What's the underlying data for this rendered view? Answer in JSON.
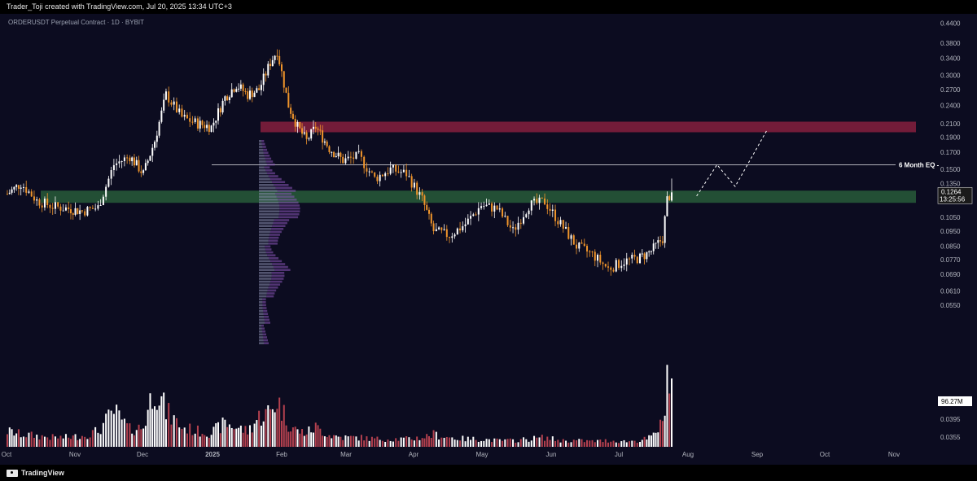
{
  "header": {
    "attribution": "Trader_Toji created with TradingView.com, Jul 20, 2025 13:34 UTC+3"
  },
  "footer": {
    "brand": "TradingView"
  },
  "colors": {
    "background": "#0c0c20",
    "up": "#ffffff",
    "down": "#f0952b",
    "supply_zone": "#9b2342",
    "demand_zone": "#2c6a3d",
    "volume_down": "#b5414f",
    "volume_up": "#ffffff",
    "volume_profile": "#8a55b8"
  },
  "chart_data": {
    "type": "candlestick",
    "title": "ORDERUSDT Perpetual Contract · 1D · BYBIT",
    "y_scale": "log",
    "ylim": [
      0.032,
      0.45
    ],
    "y_ticks": [
      "0.4400",
      "0.3800",
      "0.3400",
      "0.3000",
      "0.2700",
      "0.2400",
      "0.2100",
      "0.1900",
      "0.1700",
      "0.1500",
      "0.1350",
      "0.1050",
      "0.0950",
      "0.0850",
      "0.0770",
      "0.0690",
      "0.0610",
      "0.0550",
      "0.0490",
      "0.0395",
      "0.0355"
    ],
    "x_ticks": [
      "Oct",
      "Nov",
      "Dec",
      "2025",
      "Feb",
      "Mar",
      "Apr",
      "May",
      "Jun",
      "Jul",
      "Aug",
      "Sep",
      "Oct",
      "Nov"
    ],
    "last_price": "0.1264",
    "countdown": "13:25:56",
    "volume_label": "96.27M",
    "annotations": [
      {
        "type": "zone",
        "label": "supply",
        "low": 0.197,
        "high": 0.213
      },
      {
        "type": "zone",
        "label": "demand",
        "low": 0.117,
        "high": 0.128
      },
      {
        "type": "hline",
        "label": "6 Month EQ -",
        "value": 0.155
      }
    ],
    "projection": [
      {
        "date": "Jul 30",
        "price": 0.123
      },
      {
        "date": "Aug 8",
        "price": 0.155
      },
      {
        "date": "Aug 16",
        "price": 0.132
      },
      {
        "date": "Aug 30",
        "price": 0.2
      }
    ],
    "x_start": "Sep 29",
    "series": [
      {
        "date": "Sep 29",
        "price": 0.125,
        "volume": 20
      },
      {
        "date": "Oct 5",
        "price": 0.135,
        "volume": 16
      },
      {
        "date": "Oct 12",
        "price": 0.119,
        "volume": 14
      },
      {
        "date": "Oct 19",
        "price": 0.114,
        "volume": 12
      },
      {
        "date": "Oct 26",
        "price": 0.112,
        "volume": 12
      },
      {
        "date": "Nov 1",
        "price": 0.11,
        "volume": 14
      },
      {
        "date": "Nov 8",
        "price": 0.113,
        "volume": 20
      },
      {
        "date": "Nov 15",
        "price": 0.155,
        "volume": 45
      },
      {
        "date": "Nov 22",
        "price": 0.165,
        "volume": 22
      },
      {
        "date": "Nov 28",
        "price": 0.145,
        "volume": 25
      },
      {
        "date": "Dec 3",
        "price": 0.185,
        "volume": 80
      },
      {
        "date": "Dec 8",
        "price": 0.26,
        "volume": 45
      },
      {
        "date": "Dec 15",
        "price": 0.22,
        "volume": 25
      },
      {
        "date": "Dec 22",
        "price": 0.21,
        "volume": 20
      },
      {
        "date": "Dec 28",
        "price": 0.205,
        "volume": 18
      },
      {
        "date": "Jan 3",
        "price": 0.255,
        "volume": 30
      },
      {
        "date": "Jan 8",
        "price": 0.28,
        "volume": 25
      },
      {
        "date": "Jan 13",
        "price": 0.26,
        "volume": 20
      },
      {
        "date": "Jan 18",
        "price": 0.27,
        "volume": 38
      },
      {
        "date": "Jan 23",
        "price": 0.33,
        "volume": 45
      },
      {
        "date": "Jan 26",
        "price": 0.36,
        "volume": 60
      },
      {
        "date": "Jan 31",
        "price": 0.24,
        "volume": 30
      },
      {
        "date": "Feb 4",
        "price": 0.205,
        "volume": 20
      },
      {
        "date": "Feb 8",
        "price": 0.185,
        "volume": 18
      },
      {
        "date": "Feb 12",
        "price": 0.205,
        "volume": 25
      },
      {
        "date": "Feb 18",
        "price": 0.175,
        "volume": 15
      },
      {
        "date": "Feb 24",
        "price": 0.16,
        "volume": 12
      },
      {
        "date": "Mar 3",
        "price": 0.165,
        "volume": 12
      },
      {
        "date": "Mar 10",
        "price": 0.14,
        "volume": 10
      },
      {
        "date": "Mar 17",
        "price": 0.15,
        "volume": 10
      },
      {
        "date": "Mar 24",
        "price": 0.145,
        "volume": 10
      },
      {
        "date": "Mar 31",
        "price": 0.12,
        "volume": 12
      },
      {
        "date": "Apr 5",
        "price": 0.095,
        "volume": 16
      },
      {
        "date": "Apr 12",
        "price": 0.092,
        "volume": 12
      },
      {
        "date": "Apr 19",
        "price": 0.1,
        "volume": 10
      },
      {
        "date": "Apr 26",
        "price": 0.115,
        "volume": 10
      },
      {
        "date": "May 3",
        "price": 0.112,
        "volume": 8
      },
      {
        "date": "May 10",
        "price": 0.095,
        "volume": 8
      },
      {
        "date": "May 17",
        "price": 0.115,
        "volume": 10
      },
      {
        "date": "May 24",
        "price": 0.118,
        "volume": 12
      },
      {
        "date": "May 31",
        "price": 0.1,
        "volume": 8
      },
      {
        "date": "Jun 7",
        "price": 0.085,
        "volume": 8
      },
      {
        "date": "Jun 14",
        "price": 0.08,
        "volume": 7
      },
      {
        "date": "Jun 21",
        "price": 0.072,
        "volume": 8
      },
      {
        "date": "Jun 28",
        "price": 0.076,
        "volume": 7
      },
      {
        "date": "Jul 5",
        "price": 0.078,
        "volume": 8
      },
      {
        "date": "Jul 10",
        "price": 0.082,
        "volume": 12
      },
      {
        "date": "Jul 15",
        "price": 0.09,
        "volume": 30
      },
      {
        "date": "Jul 17",
        "price": 0.12,
        "volume": 95
      },
      {
        "date": "Jul 19",
        "price": 0.1264,
        "volume": 70
      }
    ]
  }
}
